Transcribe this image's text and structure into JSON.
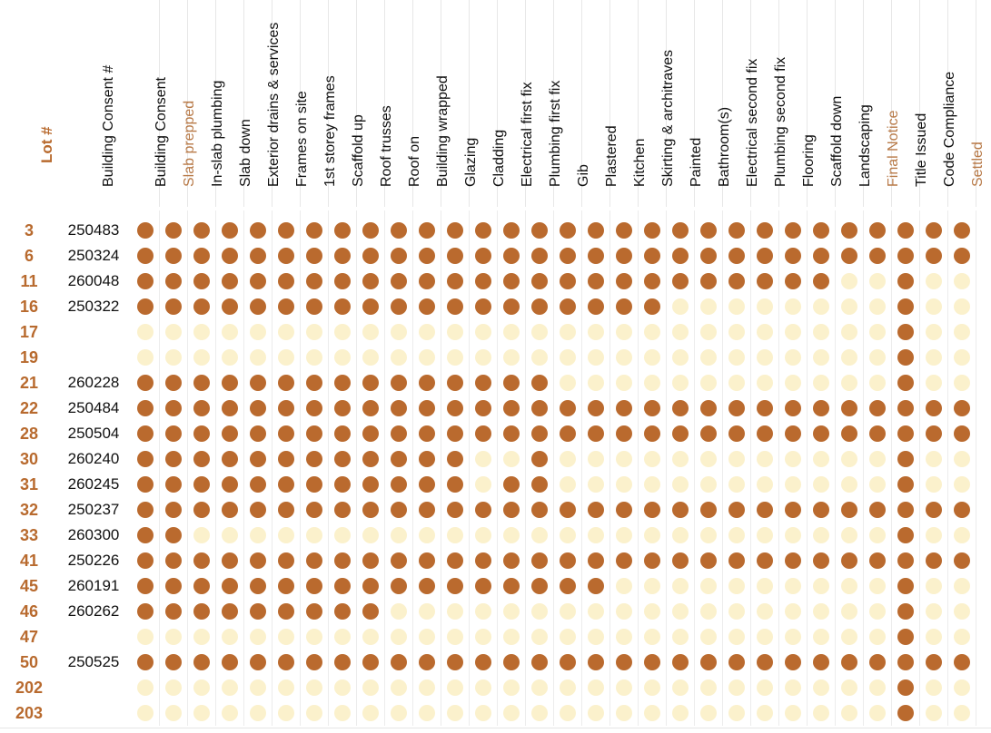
{
  "header": {
    "lot_label": "Lot #",
    "consent_label": "Building Consent #"
  },
  "colors": {
    "done": "#ba6a2e",
    "pending": "#fbf1cc",
    "lot_text": "#b86a2e",
    "alt_header_text": "#b87a48"
  },
  "stages": [
    {
      "label": "Building Consent",
      "alt": false
    },
    {
      "label": "Slab prepped",
      "alt": true
    },
    {
      "label": "In-slab plumbing",
      "alt": false
    },
    {
      "label": "Slab down",
      "alt": false
    },
    {
      "label": "Exterior drains & services",
      "alt": false
    },
    {
      "label": "Frames on site",
      "alt": false
    },
    {
      "label": "1st storey frames",
      "alt": false
    },
    {
      "label": "Scaffold up",
      "alt": false
    },
    {
      "label": "Roof trusses",
      "alt": false
    },
    {
      "label": "Roof on",
      "alt": false
    },
    {
      "label": "Building wrapped",
      "alt": false
    },
    {
      "label": "Glazing",
      "alt": false
    },
    {
      "label": "Cladding",
      "alt": false
    },
    {
      "label": "Electrical first fix",
      "alt": false
    },
    {
      "label": "Plumbing first fix",
      "alt": false
    },
    {
      "label": "Gib",
      "alt": false
    },
    {
      "label": "Plastered",
      "alt": false
    },
    {
      "label": "Kitchen",
      "alt": false
    },
    {
      "label": "Skirting & architraves",
      "alt": false
    },
    {
      "label": "Painted",
      "alt": false
    },
    {
      "label": "Bathroom(s)",
      "alt": false
    },
    {
      "label": "Electrical second fix",
      "alt": false
    },
    {
      "label": "Plumbing second fix",
      "alt": false
    },
    {
      "label": "Flooring",
      "alt": false
    },
    {
      "label": "Scaffold down",
      "alt": false
    },
    {
      "label": "Landscaping",
      "alt": false
    },
    {
      "label": "Final Notice",
      "alt": true
    },
    {
      "label": "Title Issued",
      "alt": false
    },
    {
      "label": "Code Compliance",
      "alt": false
    },
    {
      "label": "Settled",
      "alt": true
    }
  ],
  "rows": [
    {
      "lot": "3",
      "consent": "250483",
      "done": "111111111111111111111111111111"
    },
    {
      "lot": "6",
      "consent": "250324",
      "done": "111111111111111111111111111111"
    },
    {
      "lot": "11",
      "consent": "260048",
      "done": "111111111111111111111111100100"
    },
    {
      "lot": "16",
      "consent": "250322",
      "done": "111111111111111111100000000100"
    },
    {
      "lot": "17",
      "consent": "",
      "done": "000000000000000000000000000100"
    },
    {
      "lot": "19",
      "consent": "",
      "done": "000000000000000000000000000100"
    },
    {
      "lot": "21",
      "consent": "260228",
      "done": "111111111111111000000000000100"
    },
    {
      "lot": "22",
      "consent": "250484",
      "done": "111111111111111111111111111111"
    },
    {
      "lot": "28",
      "consent": "250504",
      "done": "111111111111111111111111111111"
    },
    {
      "lot": "30",
      "consent": "260240",
      "done": "111111111111001000000000000100"
    },
    {
      "lot": "31",
      "consent": "260245",
      "done": "111111111111011000000000000100"
    },
    {
      "lot": "32",
      "consent": "250237",
      "done": "111111111111111111111111111111"
    },
    {
      "lot": "33",
      "consent": "260300",
      "done": "110000000000000000000000000100"
    },
    {
      "lot": "41",
      "consent": "250226",
      "done": "111111111111111111111111111111"
    },
    {
      "lot": "45",
      "consent": "260191",
      "done": "111111111111111110000000000100"
    },
    {
      "lot": "46",
      "consent": "260262",
      "done": "111111111000000000000000000100"
    },
    {
      "lot": "47",
      "consent": "",
      "done": "000000000000000000000000000100"
    },
    {
      "lot": "50",
      "consent": "250525",
      "done": "111111111111111111111111111111"
    },
    {
      "lot": "202",
      "consent": "",
      "done": "000000000000000000000000000100"
    },
    {
      "lot": "203",
      "consent": "",
      "done": "000000000000000000000000000100"
    }
  ]
}
